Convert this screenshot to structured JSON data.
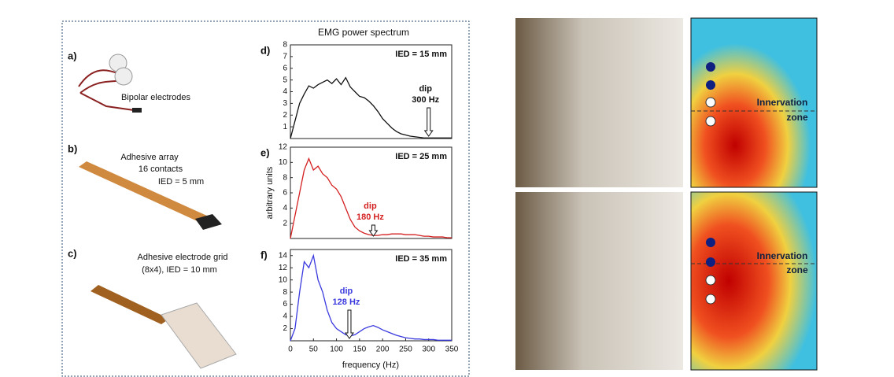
{
  "title": "EMG power spectrum",
  "y_label": "arbitrary units",
  "x_label": "frequency (Hz)",
  "panels": [
    {
      "label": "a)",
      "lines": [
        "Bipolar electrodes"
      ]
    },
    {
      "label": "b)",
      "lines": [
        "Adhesive array",
        "16 contacts",
        "IED = 5 mm"
      ]
    },
    {
      "label": "c)",
      "lines": [
        "Adhesive electrode grid",
        "(8x4), IED = 10 mm"
      ]
    }
  ],
  "innervation_top": [
    "Innervation",
    "zone"
  ],
  "innervation_bottom": [
    "Innervation",
    "zone"
  ],
  "chart_data": [
    {
      "type": "line",
      "panel": "d)",
      "annotation": "IED = 15 mm",
      "dip_label": "dip",
      "dip": {
        "value": 300,
        "label": "300 Hz"
      },
      "color": "#111111",
      "xlim": [
        0,
        350
      ],
      "ylim": [
        0,
        8
      ],
      "yticks": [
        1,
        2,
        3,
        4,
        5,
        6,
        7,
        8
      ],
      "x": [
        0,
        10,
        20,
        30,
        40,
        50,
        60,
        70,
        80,
        90,
        100,
        110,
        120,
        130,
        140,
        150,
        160,
        170,
        180,
        190,
        200,
        210,
        220,
        230,
        240,
        250,
        260,
        270,
        280,
        290,
        300,
        310,
        320,
        330,
        340,
        350
      ],
      "values": [
        0,
        1.5,
        3.0,
        3.8,
        4.5,
        4.3,
        4.6,
        4.8,
        5.0,
        4.7,
        5.1,
        4.6,
        5.2,
        4.4,
        4.0,
        3.6,
        3.5,
        3.2,
        2.8,
        2.3,
        1.7,
        1.3,
        0.9,
        0.6,
        0.4,
        0.3,
        0.2,
        0.15,
        0.1,
        0.05,
        0.05,
        0.05,
        0.05,
        0.05,
        0.05,
        0.05
      ]
    },
    {
      "type": "line",
      "panel": "e)",
      "annotation": "IED = 25 mm",
      "dip_label": "dip",
      "dip": {
        "value": 180,
        "label": "180 Hz"
      },
      "color": "#d42020",
      "xlim": [
        0,
        350
      ],
      "ylim": [
        0,
        12
      ],
      "yticks": [
        2,
        4,
        6,
        8,
        10,
        12
      ],
      "x": [
        0,
        10,
        20,
        30,
        40,
        50,
        60,
        70,
        80,
        90,
        100,
        110,
        120,
        130,
        140,
        150,
        160,
        170,
        180,
        190,
        200,
        210,
        220,
        230,
        240,
        250,
        260,
        270,
        280,
        290,
        300,
        310,
        320,
        330,
        340,
        350
      ],
      "values": [
        0,
        3,
        6,
        9,
        10.5,
        9,
        9.5,
        8.5,
        8,
        7,
        6.5,
        5.5,
        4,
        2.5,
        1.5,
        1,
        0.7,
        0.5,
        0.4,
        0.4,
        0.5,
        0.5,
        0.6,
        0.6,
        0.6,
        0.5,
        0.5,
        0.5,
        0.4,
        0.3,
        0.3,
        0.2,
        0.2,
        0.2,
        0.1,
        0.1
      ]
    },
    {
      "type": "line",
      "panel": "f)",
      "annotation": "IED = 35 mm",
      "dip_label": "dip",
      "dip": {
        "value": 128,
        "label": "128 Hz"
      },
      "color": "#3a3adf",
      "xlim": [
        0,
        350
      ],
      "xticks": [
        0,
        50,
        100,
        150,
        200,
        250,
        300,
        350
      ],
      "ylim": [
        0,
        15
      ],
      "yticks": [
        2,
        4,
        6,
        8,
        10,
        12,
        14
      ],
      "x": [
        0,
        10,
        20,
        30,
        40,
        50,
        60,
        70,
        80,
        90,
        100,
        110,
        120,
        130,
        140,
        150,
        160,
        170,
        180,
        190,
        200,
        210,
        220,
        230,
        240,
        250,
        260,
        270,
        280,
        290,
        300,
        310,
        320,
        330,
        340,
        350
      ],
      "values": [
        0,
        2,
        8,
        13,
        12,
        14,
        10,
        8,
        5,
        3,
        2,
        1.5,
        1,
        0.8,
        1,
        1.5,
        2,
        2.3,
        2.5,
        2.2,
        1.8,
        1.5,
        1.2,
        0.9,
        0.7,
        0.5,
        0.4,
        0.3,
        0.3,
        0.2,
        0.2,
        0.2,
        0.1,
        0.1,
        0.1,
        0.1
      ]
    }
  ]
}
